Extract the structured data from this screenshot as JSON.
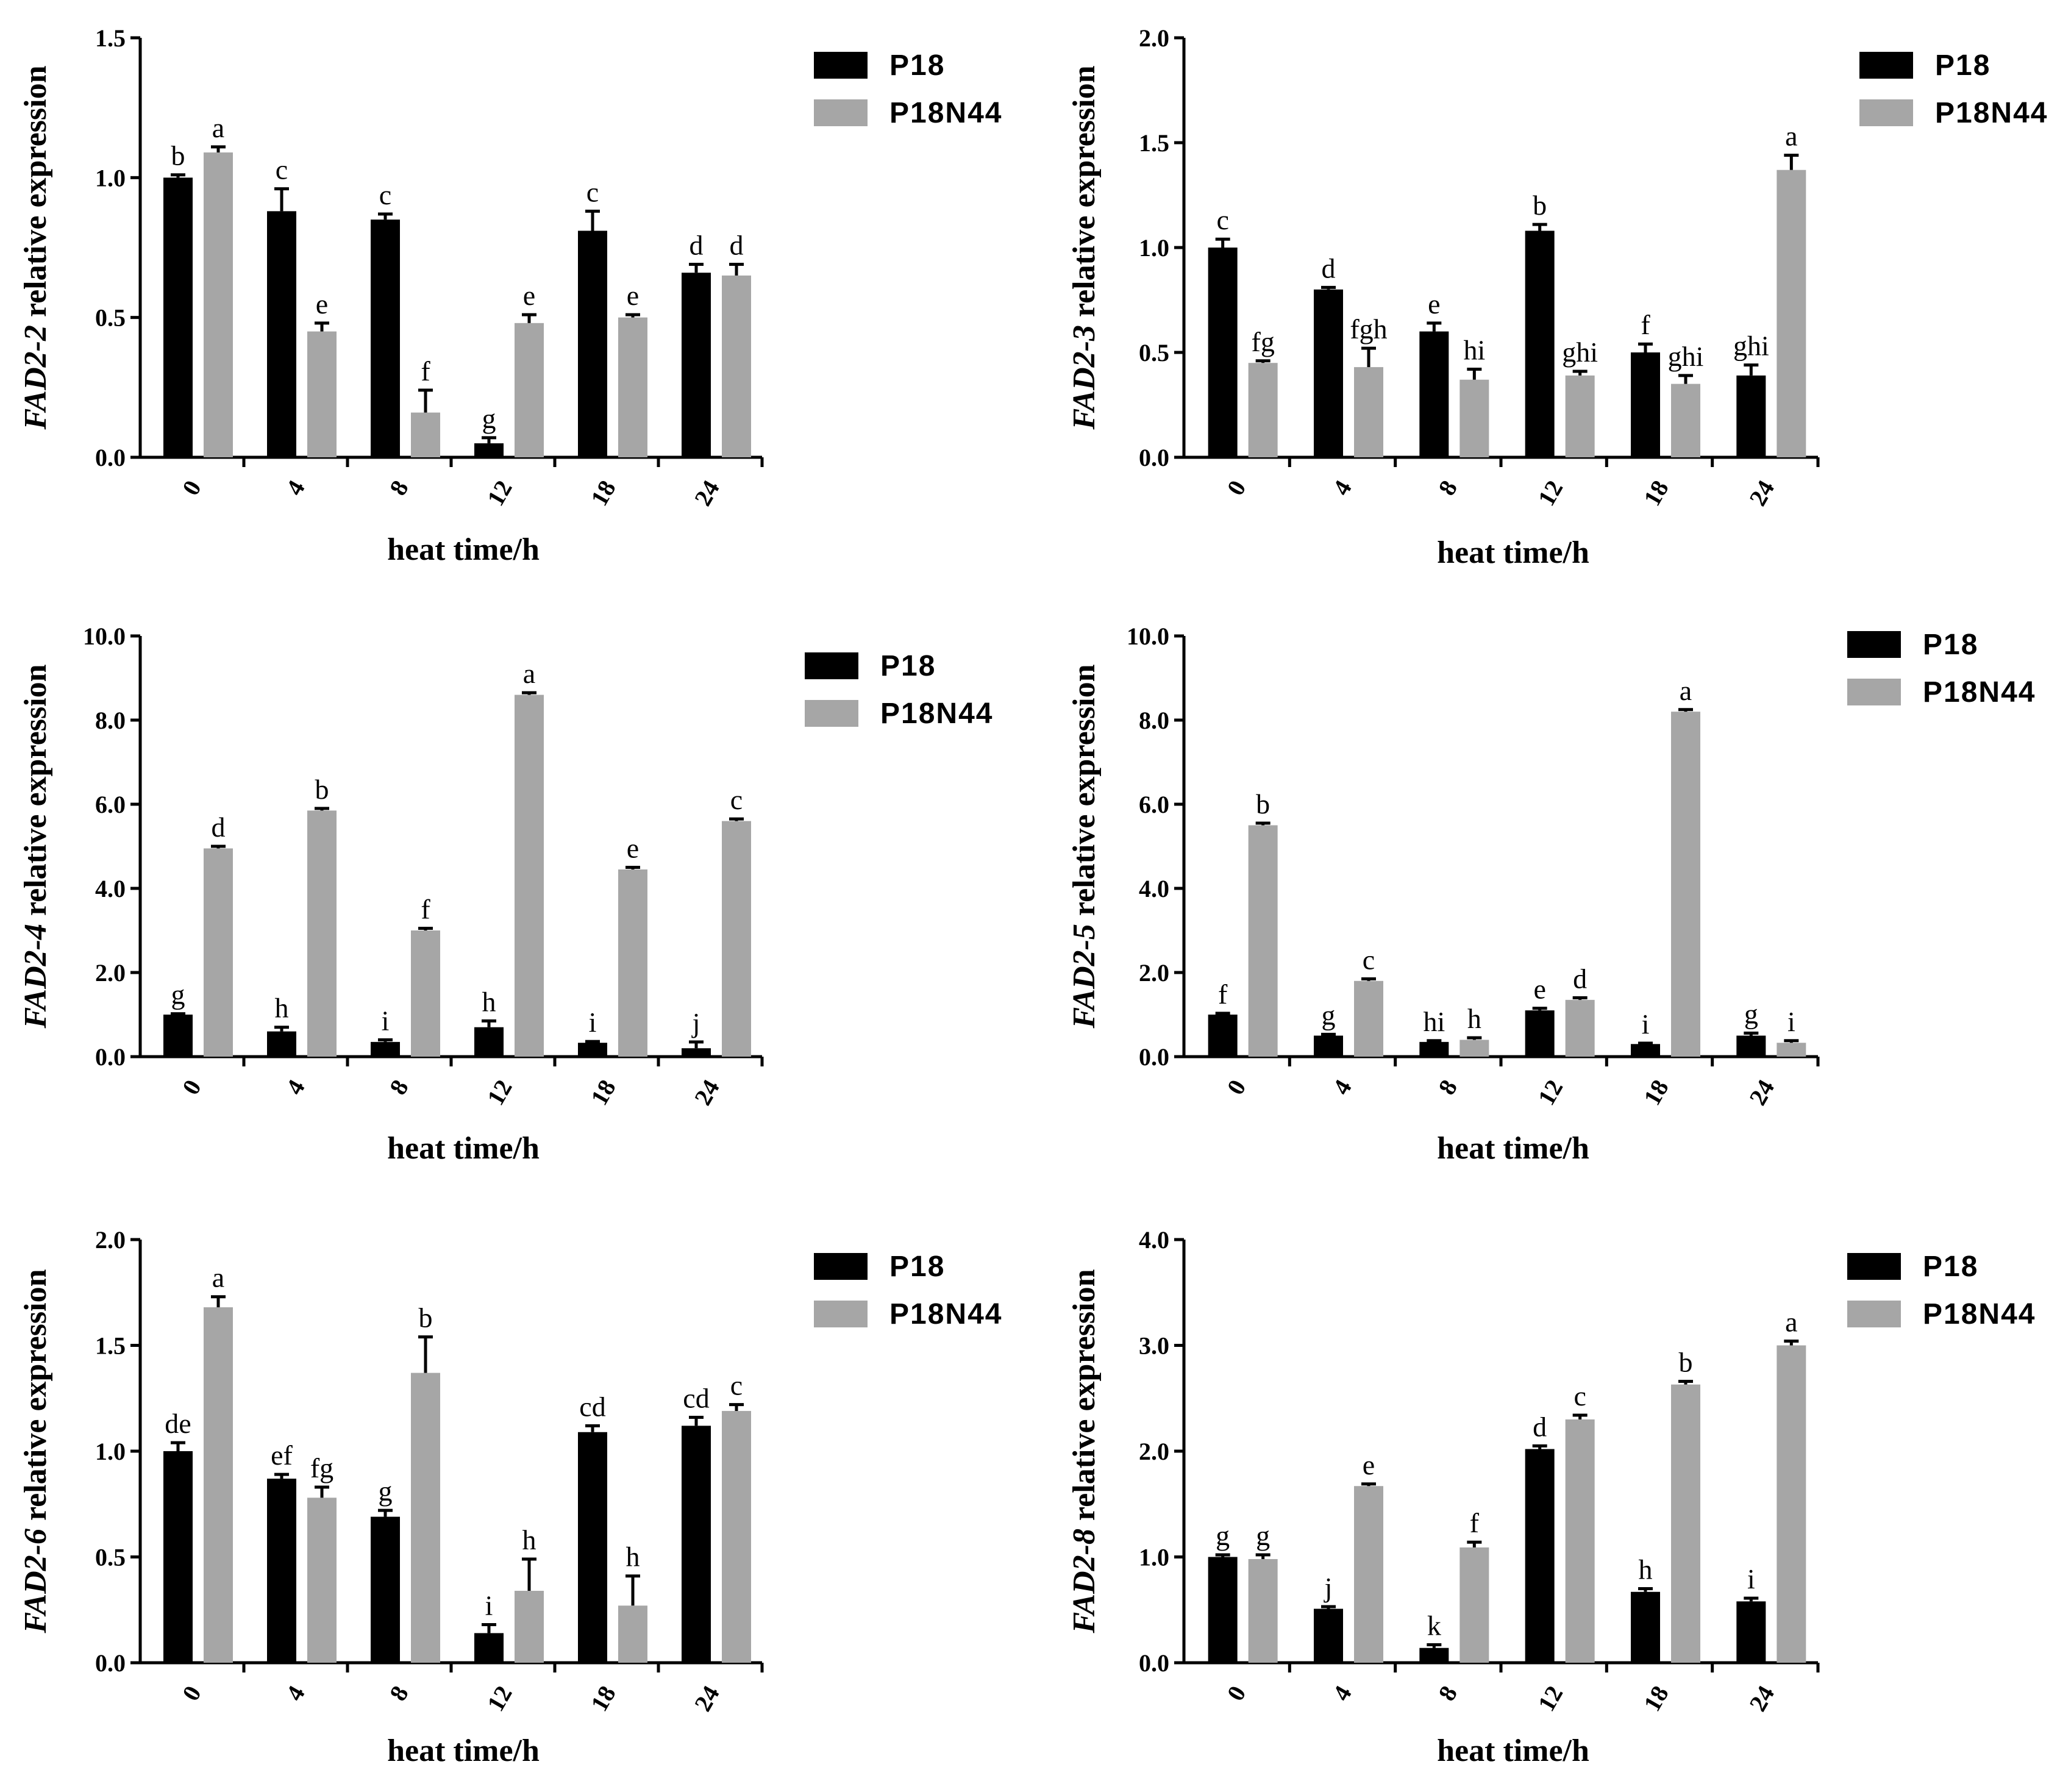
{
  "colors": {
    "p18": "#000000",
    "p18n44": "#a6a6a6"
  },
  "chart_data": [
    {
      "type": "bar",
      "gene": "FAD2-2",
      "ylabel_suffix": " relative expression",
      "xlabel": "heat time/h",
      "categories": [
        "0",
        "4",
        "8",
        "12",
        "18",
        "24"
      ],
      "ylim": [
        0,
        1.5
      ],
      "yticks": [
        "0.0",
        "0.5",
        "1.0",
        "1.5"
      ],
      "series": [
        {
          "name": "P18",
          "values": [
            1.0,
            0.88,
            0.85,
            0.05,
            0.81,
            0.66
          ],
          "errors": [
            0.01,
            0.08,
            0.02,
            0.02,
            0.07,
            0.03
          ],
          "labels": [
            "b",
            "c",
            "c",
            "g",
            "c",
            "d"
          ]
        },
        {
          "name": "P18N44",
          "values": [
            1.09,
            0.45,
            0.16,
            0.48,
            0.5,
            0.65
          ],
          "errors": [
            0.02,
            0.03,
            0.08,
            0.03,
            0.01,
            0.04
          ],
          "labels": [
            "a",
            "e",
            "f",
            "e",
            "e",
            "d"
          ]
        }
      ]
    },
    {
      "type": "bar",
      "gene": "FAD2-3",
      "ylabel_suffix": " relative expression",
      "xlabel": "heat time/h",
      "categories": [
        "0",
        "4",
        "8",
        "12",
        "18",
        "24"
      ],
      "ylim": [
        0,
        2.0
      ],
      "yticks": [
        "0.0",
        "0.5",
        "1.0",
        "1.5",
        "2.0"
      ],
      "series": [
        {
          "name": "P18",
          "values": [
            1.0,
            0.8,
            0.6,
            1.08,
            0.5,
            0.39
          ],
          "errors": [
            0.04,
            0.01,
            0.04,
            0.03,
            0.04,
            0.05
          ],
          "labels": [
            "c",
            "d",
            "e",
            "b",
            "f",
            "ghi"
          ]
        },
        {
          "name": "P18N44",
          "values": [
            0.45,
            0.43,
            0.37,
            0.39,
            0.35,
            1.37
          ],
          "errors": [
            0.01,
            0.09,
            0.05,
            0.02,
            0.04,
            0.07
          ],
          "labels": [
            "fg",
            "fgh",
            "hi",
            "ghi",
            "ghi",
            "a"
          ]
        }
      ]
    },
    {
      "type": "bar",
      "gene": "FAD2-4",
      "ylabel_suffix": " relative expression",
      "xlabel": "heat time/h",
      "categories": [
        "0",
        "4",
        "8",
        "12",
        "18",
        "24"
      ],
      "ylim": [
        0,
        10.0
      ],
      "yticks": [
        "0.0",
        "2.0",
        "4.0",
        "6.0",
        "8.0",
        "10.0"
      ],
      "series": [
        {
          "name": "P18",
          "values": [
            1.0,
            0.6,
            0.35,
            0.7,
            0.33,
            0.2
          ],
          "errors": [
            0.02,
            0.1,
            0.05,
            0.15,
            0.03,
            0.15
          ],
          "labels": [
            "g",
            "h",
            "i",
            "h",
            "i",
            "j"
          ]
        },
        {
          "name": "P18N44",
          "values": [
            4.95,
            5.85,
            3.0,
            8.6,
            4.45,
            5.6
          ],
          "errors": [
            0.05,
            0.05,
            0.05,
            0.05,
            0.05,
            0.05
          ],
          "labels": [
            "d",
            "b",
            "f",
            "a",
            "e",
            "c"
          ]
        }
      ]
    },
    {
      "type": "bar",
      "gene": "FAD2-5",
      "ylabel_suffix": " relative expression",
      "xlabel": "heat time/h",
      "categories": [
        "0",
        "4",
        "8",
        "12",
        "18",
        "24"
      ],
      "ylim": [
        0,
        10.0
      ],
      "yticks": [
        "0.0",
        "2.0",
        "4.0",
        "6.0",
        "8.0",
        "10.0"
      ],
      "series": [
        {
          "name": "P18",
          "values": [
            1.0,
            0.5,
            0.35,
            1.1,
            0.3,
            0.5
          ],
          "errors": [
            0.03,
            0.03,
            0.03,
            0.05,
            0.02,
            0.06
          ],
          "labels": [
            "f",
            "g",
            "hi",
            "e",
            "i",
            "g"
          ]
        },
        {
          "name": "P18N44",
          "values": [
            5.5,
            1.8,
            0.4,
            1.35,
            8.2,
            0.33
          ],
          "errors": [
            0.05,
            0.05,
            0.05,
            0.05,
            0.05,
            0.05
          ],
          "labels": [
            "b",
            "c",
            "h",
            "d",
            "a",
            "i"
          ]
        }
      ]
    },
    {
      "type": "bar",
      "gene": "FAD2-6",
      "ylabel_suffix": " relative expression",
      "xlabel": "heat time/h",
      "categories": [
        "0",
        "4",
        "8",
        "12",
        "18",
        "24"
      ],
      "ylim": [
        0,
        2.0
      ],
      "yticks": [
        "0.0",
        "0.5",
        "1.0",
        "1.5",
        "2.0"
      ],
      "series": [
        {
          "name": "P18",
          "values": [
            1.0,
            0.87,
            0.69,
            0.14,
            1.09,
            1.12
          ],
          "errors": [
            0.04,
            0.02,
            0.03,
            0.04,
            0.03,
            0.04
          ],
          "labels": [
            "de",
            "ef",
            "g",
            "i",
            "cd",
            "cd"
          ]
        },
        {
          "name": "P18N44",
          "values": [
            1.68,
            0.78,
            1.37,
            0.34,
            0.27,
            1.19
          ],
          "errors": [
            0.05,
            0.05,
            0.17,
            0.15,
            0.14,
            0.03
          ],
          "labels": [
            "a",
            "fg",
            "b",
            "h",
            "h",
            "c"
          ]
        }
      ]
    },
    {
      "type": "bar",
      "gene": "FAD2-8",
      "ylabel_suffix": " relative expression",
      "xlabel": "heat time/h",
      "categories": [
        "0",
        "4",
        "8",
        "12",
        "18",
        "24"
      ],
      "ylim": [
        0,
        4.0
      ],
      "yticks": [
        "0.0",
        "1.0",
        "2.0",
        "3.0",
        "4.0"
      ],
      "series": [
        {
          "name": "P18",
          "values": [
            1.0,
            0.51,
            0.14,
            2.02,
            0.67,
            0.58
          ],
          "errors": [
            0.02,
            0.02,
            0.03,
            0.03,
            0.03,
            0.03
          ],
          "labels": [
            "g",
            "j",
            "k",
            "d",
            "h",
            "i"
          ]
        },
        {
          "name": "P18N44",
          "values": [
            0.98,
            1.67,
            1.09,
            2.3,
            2.63,
            3.0
          ],
          "errors": [
            0.04,
            0.02,
            0.05,
            0.04,
            0.03,
            0.04
          ],
          "labels": [
            "g",
            "e",
            "f",
            "c",
            "b",
            "a"
          ]
        }
      ]
    }
  ]
}
